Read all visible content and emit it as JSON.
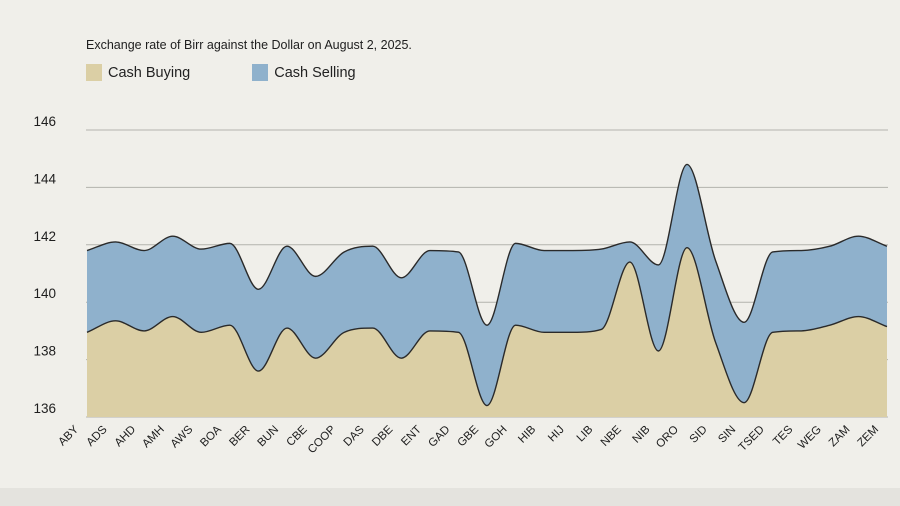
{
  "chart_data": {
    "type": "area",
    "title": "Exchange rate of Birr against the Dollar on August 2, 2025.",
    "xlabel": "",
    "ylabel": "",
    "ylim": [
      136,
      146
    ],
    "yticks": [
      136,
      138,
      140,
      142,
      144,
      146
    ],
    "grid": true,
    "legend_position": "top-left",
    "categories": [
      "ABY",
      "ADS",
      "AHD",
      "AMH",
      "AWS",
      "BOA",
      "BER",
      "BUN",
      "CBE",
      "COOP",
      "DAS",
      "DBE",
      "ENT",
      "GAD",
      "GBE",
      "GOH",
      "HIB",
      "HIJ",
      "LIB",
      "NBE",
      "NIB",
      "ORO",
      "SID",
      "SIN",
      "TSED",
      "TES",
      "WEG",
      "ZAM",
      "ZEM"
    ],
    "series": [
      {
        "name": "Cash Buying",
        "color": "#dbcfa5",
        "values": [
          138.95,
          139.35,
          139.0,
          139.5,
          138.95,
          139.2,
          137.6,
          139.1,
          138.05,
          138.95,
          139.1,
          138.05,
          139.0,
          138.95,
          136.4,
          139.2,
          138.95,
          138.95,
          139.05,
          141.4,
          138.3,
          141.9,
          138.6,
          136.5,
          138.95,
          139.0,
          139.2,
          139.5,
          139.15
        ]
      },
      {
        "name": "Cash Selling",
        "color": "#8fb1cc",
        "values": [
          141.8,
          142.1,
          141.8,
          142.3,
          141.85,
          142.05,
          140.45,
          141.95,
          140.9,
          141.75,
          141.95,
          140.85,
          141.8,
          141.75,
          139.2,
          142.05,
          141.8,
          141.8,
          141.85,
          142.1,
          141.3,
          144.8,
          141.45,
          139.3,
          141.75,
          141.8,
          141.95,
          142.3,
          141.95
        ]
      }
    ],
    "colors": {
      "grid": "#b3b3ad",
      "outline": "#2a2a2a",
      "background": "#f0efea"
    }
  }
}
